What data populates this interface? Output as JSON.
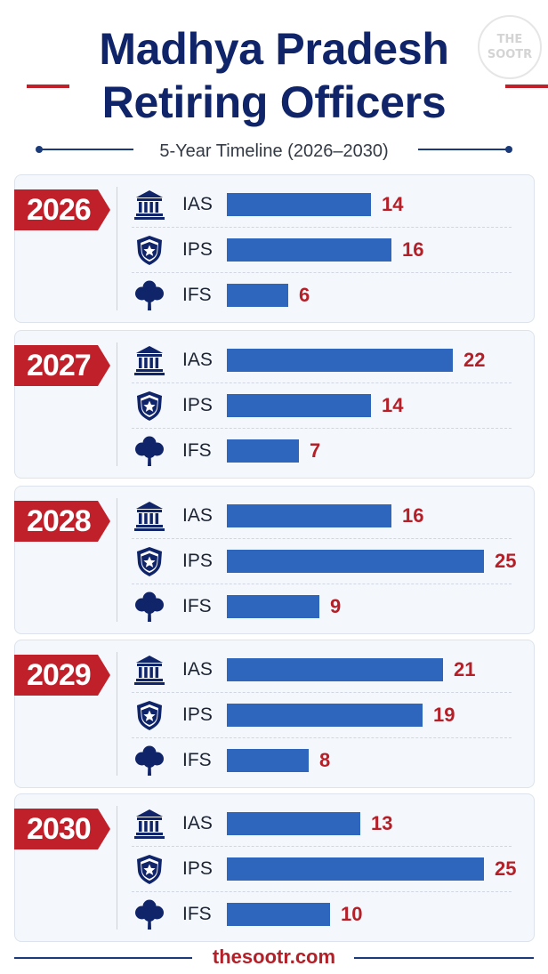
{
  "logo": {
    "text": "THE\nSOOTR"
  },
  "header": {
    "title_line1": "Madhya Pradesh",
    "title_line2": "Retiring Officers",
    "subtitle": "5-Year Timeline (2026–2030)"
  },
  "footer": {
    "site": "thesootr.com"
  },
  "colors": {
    "navy": "#10246a",
    "bar": "#2e66bd",
    "accent_red": "#c0202a",
    "value_red": "#b51f28",
    "card_bg": "#f4f7fb"
  },
  "icons": {
    "IAS": "building-icon",
    "IPS": "shield-star-icon",
    "IFS": "tree-icon"
  },
  "chart_data": {
    "type": "bar",
    "orientation": "horizontal",
    "groups": [
      "2026",
      "2027",
      "2028",
      "2029",
      "2030"
    ],
    "categories": [
      "IAS",
      "IPS",
      "IFS"
    ],
    "values": [
      [
        14,
        16,
        6
      ],
      [
        22,
        14,
        7
      ],
      [
        16,
        25,
        9
      ],
      [
        21,
        19,
        8
      ],
      [
        13,
        25,
        10
      ]
    ],
    "max": 25,
    "data_labels": true,
    "grid": false,
    "legend": "none"
  }
}
